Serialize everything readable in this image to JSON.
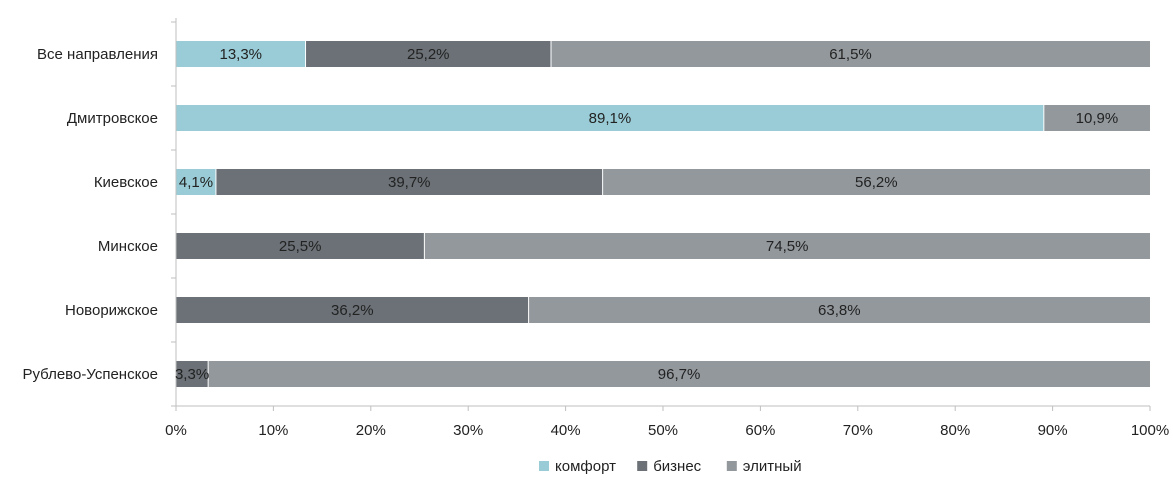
{
  "chart_data": {
    "type": "bar",
    "orientation": "horizontal",
    "stacked": true,
    "categories": [
      "Все направления",
      "Дмитровское",
      "Киевское",
      "Минское",
      "Новорижское",
      "Рублево-Успенское"
    ],
    "series": [
      {
        "name": "комфорт",
        "color": "#99ccd6",
        "values": [
          13.3,
          89.1,
          4.1,
          0,
          0,
          0
        ],
        "labels": [
          "13,3%",
          "89,1%",
          "4,1%",
          "",
          "",
          ""
        ]
      },
      {
        "name": "бизнес",
        "color": "#6b7176",
        "values": [
          25.2,
          0,
          39.7,
          25.5,
          36.2,
          3.3
        ],
        "labels": [
          "25,2%",
          "",
          "39,7%",
          "25,5%",
          "36,2%",
          "3,3%"
        ]
      },
      {
        "name": "элитный",
        "color": "#93989c",
        "values": [
          61.5,
          10.9,
          56.2,
          74.5,
          63.8,
          96.7
        ],
        "labels": [
          "61,5%",
          "10,9%",
          "56,2%",
          "74,5%",
          "63,8%",
          "96,7%"
        ]
      }
    ],
    "xlim": [
      0,
      100
    ],
    "x_ticks": [
      "0%",
      "10%",
      "20%",
      "30%",
      "40%",
      "50%",
      "60%",
      "70%",
      "80%",
      "90%",
      "100%"
    ],
    "legend": {
      "position": "bottom"
    },
    "grid": false,
    "title": "",
    "xlabel": "",
    "ylabel": ""
  }
}
